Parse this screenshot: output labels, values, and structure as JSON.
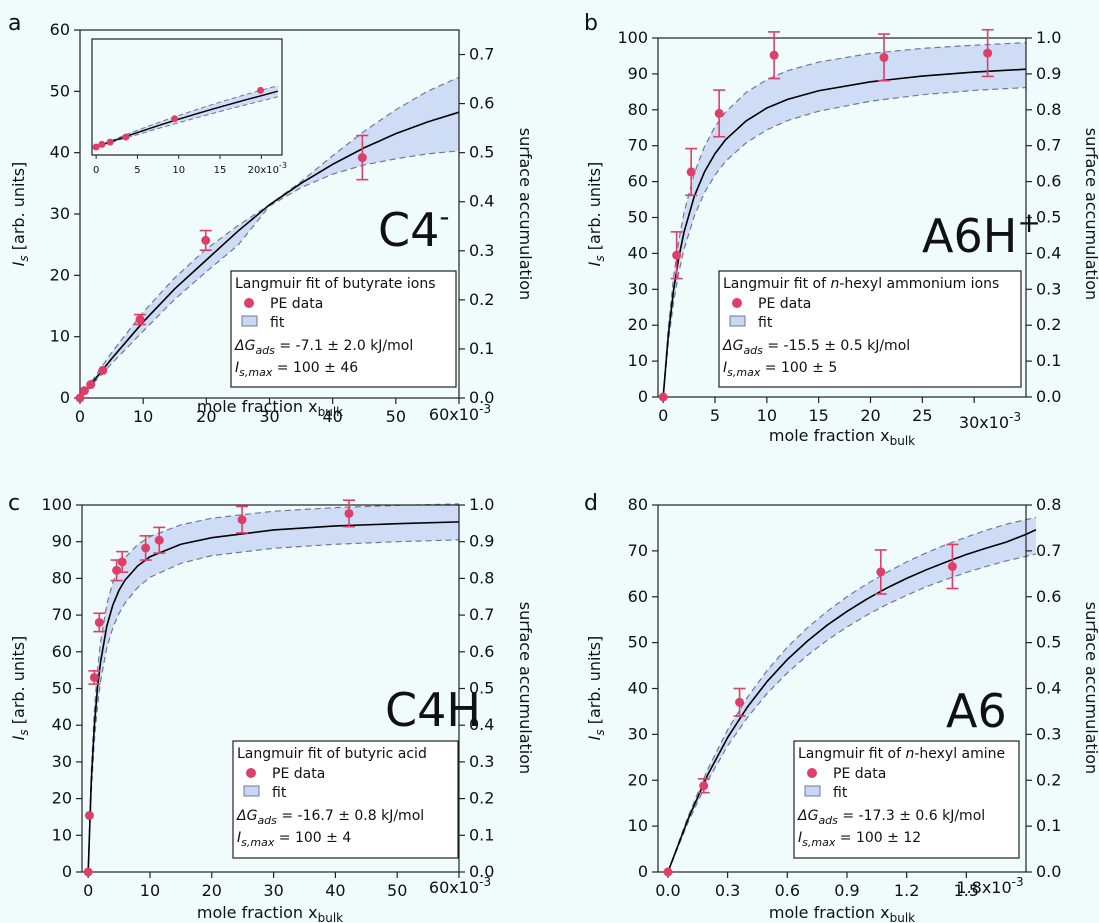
{
  "figure": {
    "panels": [
      {
        "letter": "a",
        "tag": "C4",
        "tag_sup": "-",
        "ylabel_main": "I",
        "ylabel_sub": "s",
        "ylabel_rest": " [arb. units]",
        "ylabel_right": "surface accumulation",
        "xlabel_main": "mole fraction x",
        "xlabel_sub": "bulk",
        "x_exponent": "x10",
        "x_exponent_sup": "-3",
        "legend": {
          "title_pre": "Langmuir fit of butyrate ions",
          "title_italic": "",
          "title_post": "",
          "data_label": "PE data",
          "fit_label": "fit",
          "dg_label": "ΔG",
          "dg_sub": "ads",
          "dg_value": " = -7.1 ± 2.0 kJ/mol",
          "imax_label": "I",
          "imax_sub": "s,max",
          "imax_value": " =  100 ± 46"
        },
        "inset": {
          "x_ticks": [
            "0",
            "5",
            "10",
            "15",
            "20x10"
          ],
          "x_exp_sup": "-3"
        }
      },
      {
        "letter": "b",
        "tag": "A6H",
        "tag_sup": "+",
        "ylabel_main": "I",
        "ylabel_sub": "s",
        "ylabel_rest": " [arb. units]",
        "ylabel_right": "surface accumulation",
        "xlabel_main": "mole fraction x",
        "xlabel_sub": "bulk",
        "x_exponent": "x10",
        "x_exponent_sup": "-3",
        "legend": {
          "title_pre": "Langmuir fit of ",
          "title_italic": "n",
          "title_post": "-hexyl ammonium ions",
          "data_label": "PE data",
          "fit_label": "fit",
          "dg_label": "ΔG",
          "dg_sub": "ads",
          "dg_value": " = -15.5 ± 0.5 kJ/mol",
          "imax_label": "I",
          "imax_sub": "s,max",
          "imax_value": " =  100 ± 5"
        }
      },
      {
        "letter": "c",
        "tag": "C4H",
        "tag_sup": "",
        "ylabel_main": "I",
        "ylabel_sub": "s",
        "ylabel_rest": " [arb. units]",
        "ylabel_right": "surface accumulation",
        "xlabel_main": "mole fraction x",
        "xlabel_sub": "bulk",
        "x_exponent": "x10",
        "x_exponent_sup": "-3",
        "legend": {
          "title_pre": "Langmuir fit of butyric acid",
          "title_italic": "",
          "title_post": "",
          "data_label": "PE data",
          "fit_label": "fit",
          "dg_label": "ΔG",
          "dg_sub": "ads",
          "dg_value": " = -16.7 ± 0.8 kJ/mol",
          "imax_label": "I",
          "imax_sub": "s,max",
          "imax_value": " =  100 ± 4"
        }
      },
      {
        "letter": "d",
        "tag": "A6",
        "tag_sup": "",
        "ylabel_main": "I",
        "ylabel_sub": "s",
        "ylabel_rest": " [arb. units]",
        "ylabel_right": "surface accumulation",
        "xlabel_main": "mole fraction x",
        "xlabel_sub": "bulk",
        "x_exponent": "x10",
        "x_exponent_sup": "-3",
        "legend": {
          "title_pre": "Langmuir fit of ",
          "title_italic": "n",
          "title_post": "-hexyl amine",
          "data_label": "PE data",
          "fit_label": "fit",
          "dg_label": "ΔG",
          "dg_sub": "ads",
          "dg_value": " = -17.3 ± 0.6 kJ/mol",
          "imax_label": "I",
          "imax_sub": "s,max",
          "imax_value": " =  100 ± 12"
        }
      }
    ]
  },
  "colors": {
    "background": "#f0fcfc",
    "point": "#dd3f68",
    "errorbar": "#dd3f68",
    "band_fill": "#c9d6f5",
    "band_edge": "#6d7a96",
    "fit_line": "#000000"
  },
  "chart_data": [
    {
      "type": "scatter",
      "panel": "a",
      "x_scale": 0.001,
      "xlim": [
        0,
        60
      ],
      "ylim": [
        0,
        60
      ],
      "y2lim": [
        0,
        0.75
      ],
      "x_ticks": [
        0,
        10,
        20,
        30,
        40,
        50,
        60
      ],
      "y_ticks": [
        0,
        10,
        20,
        30,
        40,
        50,
        60
      ],
      "y2_ticks": [
        0.0,
        0.1,
        0.2,
        0.3,
        0.4,
        0.5,
        0.6,
        0.7
      ],
      "y2_tick_labels": [
        "0.0",
        "0.1",
        "0.2",
        "0.3",
        "0.4",
        "0.5",
        "0.6",
        "0.7"
      ],
      "series": [
        {
          "name": "PE data",
          "x": [
            0,
            0.7,
            1.7,
            3.6,
            9.5,
            19.9,
            44.7
          ],
          "y": [
            0,
            1.2,
            2.2,
            4.5,
            12.8,
            25.7,
            39.2
          ],
          "yerr": [
            0,
            0,
            0,
            0,
            0.8,
            1.6,
            3.6
          ]
        },
        {
          "name": "fit",
          "x": [
            0,
            5,
            10,
            15,
            20,
            25,
            30,
            35,
            40,
            45,
            50,
            55,
            60
          ],
          "y": [
            0,
            6.4,
            12.4,
            17.8,
            22.5,
            27.2,
            31.5,
            35.0,
            38.1,
            40.8,
            43.1,
            45.0,
            46.6
          ],
          "y_upper": [
            0,
            7.4,
            14.0,
            19.6,
            24.3,
            28.1,
            31.5,
            35.3,
            39.5,
            43.5,
            47.0,
            50.0,
            52.3
          ],
          "y_lower": [
            0,
            5.6,
            10.9,
            16.1,
            20.6,
            24.9,
            31.3,
            34.3,
            36.5,
            38.0,
            39.0,
            39.8,
            40.3
          ]
        }
      ],
      "inset": {
        "xlim": [
          -0.5,
          22.5
        ],
        "ylim": [
          0,
          49
        ],
        "x_ticks": [
          0,
          5,
          10,
          15,
          20
        ],
        "points_x": [
          0,
          0.7,
          1.7,
          3.6,
          9.5,
          19.9
        ],
        "points_y": [
          0,
          1.2,
          2.2,
          4.5,
          12.8,
          25.7
        ],
        "fit_x": [
          0,
          2,
          4,
          6,
          8,
          10,
          12,
          14,
          16,
          18,
          20,
          22
        ],
        "fit_y": [
          0,
          2.7,
          5.3,
          7.8,
          10.3,
          12.6,
          14.9,
          17.1,
          19.2,
          21.3,
          23.3,
          25.3
        ],
        "fit_upper": [
          0,
          3.2,
          6.2,
          9.0,
          11.7,
          14.3,
          16.8,
          19.2,
          21.5,
          23.7,
          25.8,
          27.8
        ],
        "fit_lower": [
          0,
          2.3,
          4.5,
          6.7,
          8.9,
          11.0,
          13.1,
          15.1,
          17.1,
          19.0,
          20.9,
          22.8
        ]
      }
    },
    {
      "type": "scatter",
      "panel": "b",
      "x_scale": 0.001,
      "xlim": [
        -0.5,
        35
      ],
      "ylim": [
        0,
        100
      ],
      "y2lim": [
        0,
        1.0
      ],
      "x_ticks": [
        0,
        5,
        10,
        15,
        20,
        25,
        30
      ],
      "y_ticks": [
        0,
        10,
        20,
        30,
        40,
        50,
        60,
        70,
        80,
        90,
        100
      ],
      "y2_ticks": [
        0.0,
        0.1,
        0.2,
        0.3,
        0.4,
        0.5,
        0.6,
        0.7,
        0.8,
        0.9,
        1.0
      ],
      "y2_tick_labels": [
        "0.0",
        "0.1",
        "0.2",
        "0.3",
        "0.4",
        "0.5",
        "0.6",
        "0.7",
        "0.8",
        "0.9",
        "1.0"
      ],
      "series": [
        {
          "name": "PE data",
          "x": [
            0,
            1.3,
            2.7,
            5.4,
            10.7,
            21.3,
            31.3
          ],
          "y": [
            0,
            39.5,
            62.7,
            79.0,
            95.2,
            94.6,
            95.8
          ],
          "yerr": [
            0,
            6.5,
            6.5,
            6.5,
            6.5,
            6.5,
            6.5
          ]
        },
        {
          "name": "fit",
          "x": [
            0,
            0.5,
            1,
            1.5,
            2,
            3,
            4,
            5,
            6,
            8,
            10,
            12,
            15,
            20,
            25,
            30,
            35
          ],
          "y": [
            0,
            17.4,
            29.7,
            38.8,
            45.8,
            55.9,
            62.8,
            67.8,
            71.6,
            76.9,
            80.5,
            82.9,
            85.3,
            87.8,
            89.4,
            90.5,
            91.3
          ],
          "y_upper": [
            0,
            19.5,
            33.3,
            43.5,
            51.2,
            62.3,
            69.9,
            75.3,
            79.3,
            84.8,
            88.4,
            90.9,
            93.3,
            95.7,
            97.1,
            98.0,
            98.7
          ],
          "y_lower": [
            0,
            15.3,
            26.4,
            34.6,
            41.0,
            50.4,
            57.0,
            61.8,
            65.6,
            70.8,
            74.4,
            77.0,
            79.6,
            82.4,
            84.2,
            85.4,
            86.2
          ]
        }
      ]
    },
    {
      "type": "scatter",
      "panel": "c",
      "x_scale": 0.001,
      "xlim": [
        -1,
        60
      ],
      "ylim": [
        0,
        100
      ],
      "y2lim": [
        0,
        1.0
      ],
      "x_ticks": [
        0,
        10,
        20,
        30,
        40,
        50,
        60
      ],
      "y_ticks": [
        0,
        10,
        20,
        30,
        40,
        50,
        60,
        70,
        80,
        90,
        100
      ],
      "y2_ticks": [
        0.0,
        0.1,
        0.2,
        0.3,
        0.4,
        0.5,
        0.6,
        0.7,
        0.8,
        0.9,
        1.0
      ],
      "y2_tick_labels": [
        "0.0",
        "0.1",
        "0.2",
        "0.3",
        "0.4",
        "0.5",
        "0.6",
        "0.7",
        "0.8",
        "0.9",
        "1.0"
      ],
      "series": [
        {
          "name": "PE data",
          "x": [
            0,
            0.2,
            1.0,
            1.8,
            4.6,
            5.5,
            9.3,
            11.5,
            24.9,
            42.2
          ],
          "y": [
            0,
            15.4,
            53.0,
            68.0,
            82.2,
            84.5,
            88.3,
            90.4,
            96.0,
            97.7
          ],
          "yerr": [
            0,
            0,
            1.8,
            2.5,
            2.8,
            2.8,
            3.3,
            3.5,
            3.6,
            3.6
          ]
        },
        {
          "name": "fit",
          "x": [
            0,
            0.5,
            1,
            1.5,
            2,
            3,
            4,
            5,
            6,
            8,
            10,
            15,
            20,
            30,
            40,
            50,
            60
          ],
          "y": [
            0,
            24.6,
            39.9,
            50.1,
            57.2,
            66.9,
            72.8,
            76.8,
            79.6,
            83.4,
            85.9,
            89.3,
            91.1,
            93.2,
            94.3,
            94.9,
            95.4
          ],
          "y_upper": [
            0,
            27.4,
            44.0,
            55.0,
            62.6,
            72.8,
            79.0,
            83.0,
            85.7,
            89.2,
            91.4,
            94.6,
            96.4,
            98.3,
            99.3,
            99.9,
            100.3
          ],
          "y_lower": [
            0,
            21.9,
            35.8,
            45.2,
            51.9,
            61.0,
            66.6,
            70.5,
            73.4,
            77.5,
            80.3,
            84.1,
            86.2,
            88.2,
            89.3,
            90.0,
            90.5
          ]
        }
      ]
    },
    {
      "type": "scatter",
      "panel": "d",
      "x_scale": 0.001,
      "xlim": [
        -0.05,
        1.8
      ],
      "ylim": [
        0,
        80
      ],
      "y2lim": [
        0,
        0.8
      ],
      "x_ticks": [
        0.0,
        0.3,
        0.6,
        0.9,
        1.2,
        1.5
      ],
      "x_tick_labels": [
        "0.0",
        "0.3",
        "0.6",
        "0.9",
        "1.2",
        "1.5"
      ],
      "x_end_label": "1.8",
      "y_ticks": [
        0,
        10,
        20,
        30,
        40,
        50,
        60,
        70,
        80
      ],
      "y2_ticks": [
        0.0,
        0.1,
        0.2,
        0.3,
        0.4,
        0.5,
        0.6,
        0.7,
        0.8
      ],
      "y2_tick_labels": [
        "0.0",
        "0.1",
        "0.2",
        "0.3",
        "0.4",
        "0.5",
        "0.6",
        "0.7",
        "0.8"
      ],
      "series": [
        {
          "name": "PE data",
          "x": [
            0,
            0.18,
            0.36,
            1.07,
            1.43
          ],
          "y": [
            0,
            18.8,
            37.0,
            65.4,
            66.6
          ],
          "yerr": [
            0,
            1.5,
            3.0,
            4.8,
            4.8
          ]
        },
        {
          "name": "fit",
          "x": [
            0,
            0.1,
            0.2,
            0.3,
            0.4,
            0.5,
            0.6,
            0.7,
            0.8,
            0.9,
            1.0,
            1.1,
            1.2,
            1.3,
            1.4,
            1.5,
            1.6,
            1.7,
            1.8,
            1.85
          ],
          "y": [
            0,
            11.4,
            21.2,
            29.3,
            36.0,
            41.6,
            46.3,
            50.3,
            53.8,
            56.8,
            59.5,
            61.9,
            64.0,
            65.9,
            67.6,
            69.2,
            70.6,
            71.9,
            73.6,
            74.6
          ],
          "y_upper": [
            0,
            12.0,
            22.4,
            31.0,
            38.1,
            44.0,
            49.0,
            53.2,
            56.8,
            60.0,
            62.8,
            65.3,
            67.6,
            69.6,
            71.4,
            73.0,
            74.5,
            75.8,
            76.8,
            77.3
          ],
          "y_lower": [
            0,
            10.7,
            19.9,
            27.5,
            33.7,
            39.0,
            43.4,
            47.2,
            50.5,
            53.4,
            56.0,
            58.3,
            60.3,
            62.2,
            63.8,
            65.3,
            66.6,
            67.8,
            68.8,
            69.3
          ]
        }
      ]
    }
  ]
}
